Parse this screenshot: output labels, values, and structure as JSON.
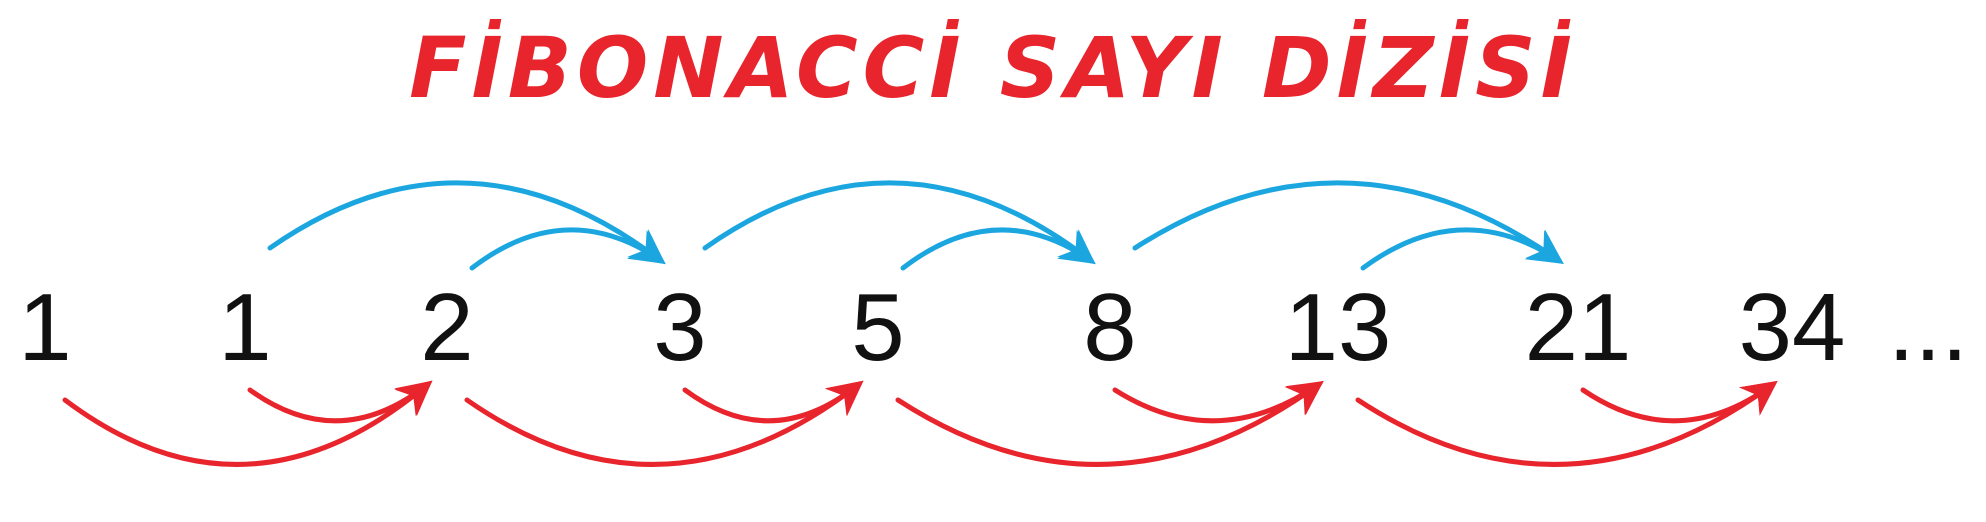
{
  "title": "FİBONACCİ SAYI DİZİSİ",
  "sequence": [
    "1",
    "1",
    "2",
    "3",
    "5",
    "8",
    "13",
    "21",
    "34"
  ],
  "ellipsis": "...",
  "colors": {
    "title": "#e8242c",
    "top_arrows": "#1ba6e0",
    "bottom_arrows": "#e8242c",
    "numbers": "#111111"
  },
  "arrows": {
    "top": [
      {
        "from": 1,
        "to": 3
      },
      {
        "from": 2,
        "to": 3
      },
      {
        "from": 3,
        "to": 5
      },
      {
        "from": 4,
        "to": 5
      },
      {
        "from": 5,
        "to": 7
      },
      {
        "from": 6,
        "to": 7
      }
    ],
    "bottom": [
      {
        "from": 0,
        "to": 2
      },
      {
        "from": 1,
        "to": 2
      },
      {
        "from": 2,
        "to": 4
      },
      {
        "from": 3,
        "to": 4
      },
      {
        "from": 4,
        "to": 6
      },
      {
        "from": 5,
        "to": 6
      },
      {
        "from": 6,
        "to": 8
      },
      {
        "from": 7,
        "to": 8
      }
    ]
  }
}
